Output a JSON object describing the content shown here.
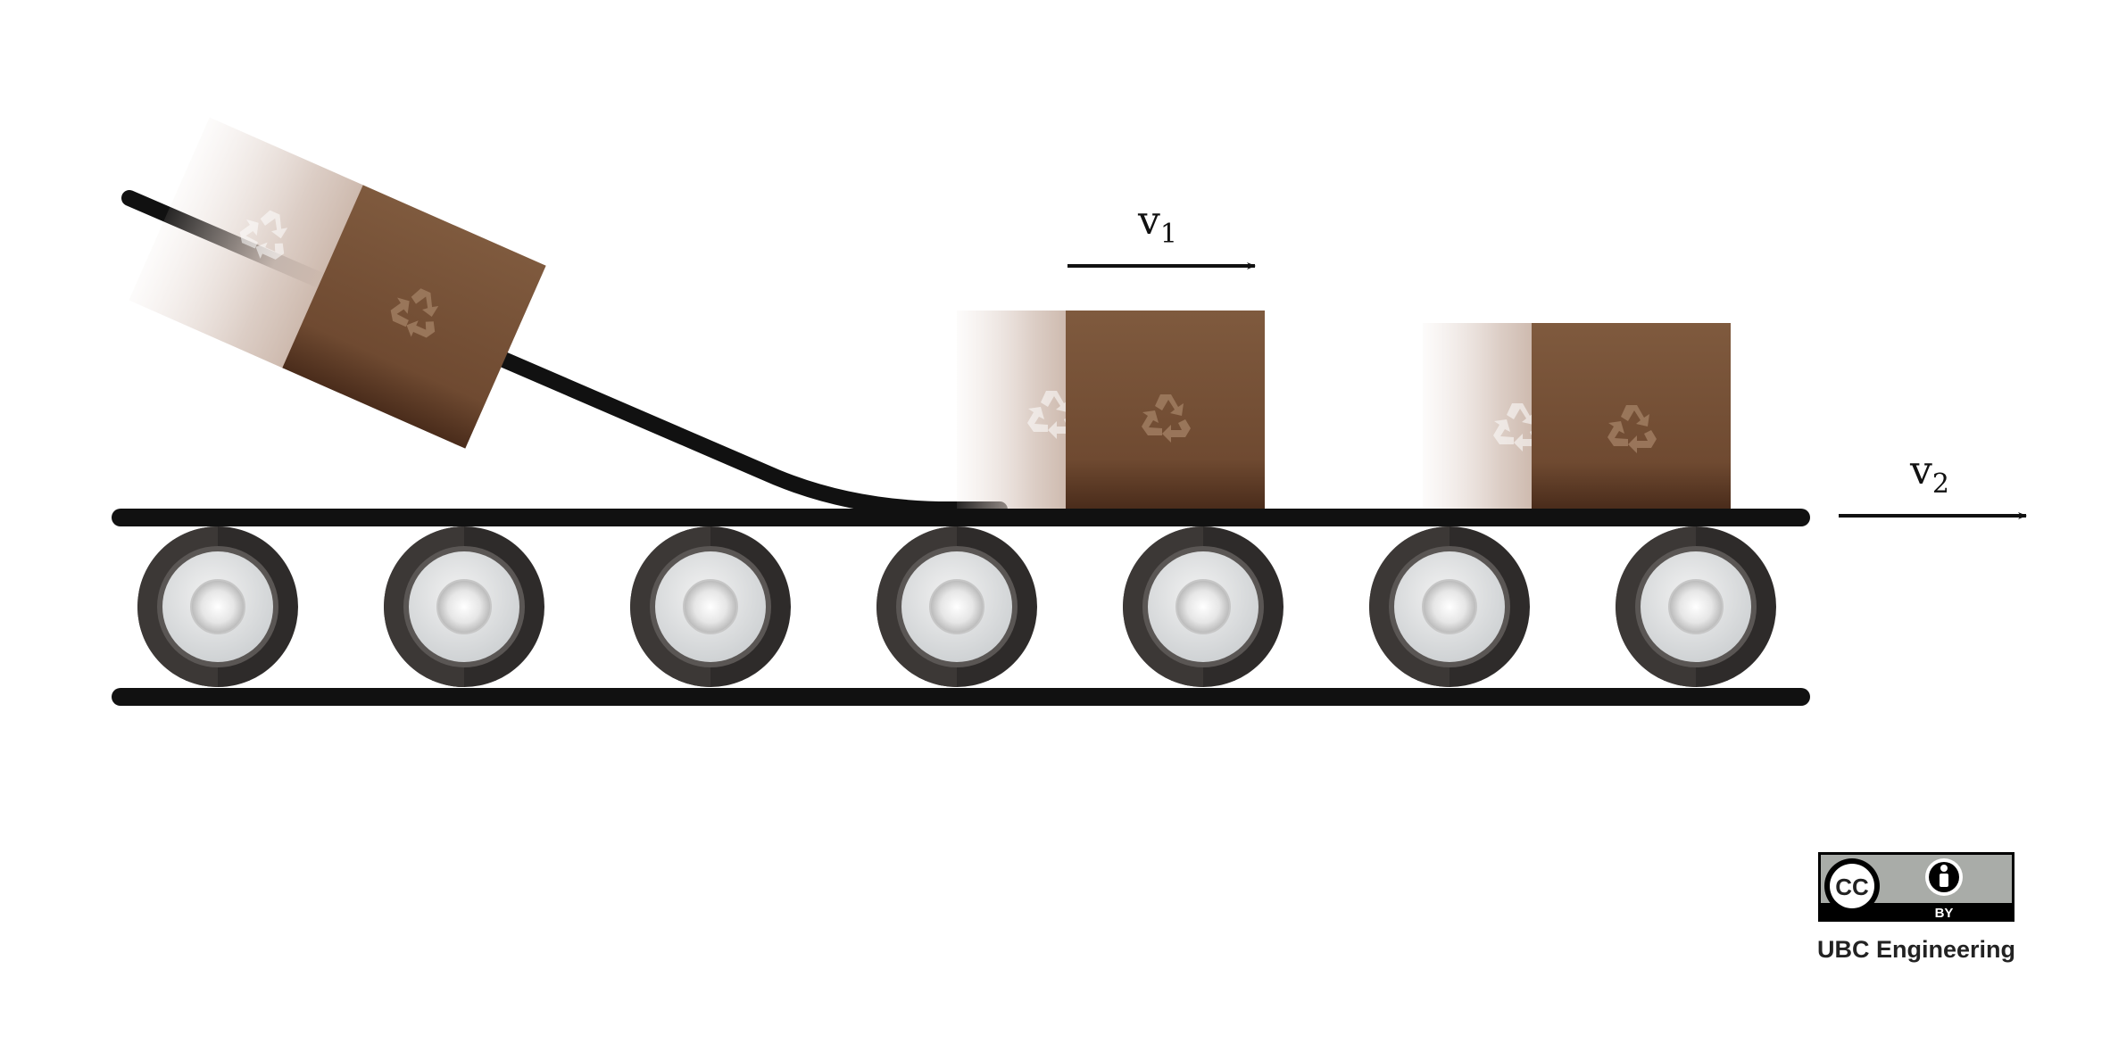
{
  "velocities": [
    {
      "symbol": "v",
      "subscript": "1"
    },
    {
      "symbol": "v",
      "subscript": "2"
    }
  ],
  "license": {
    "icon_cc": "CC",
    "icon_by": "BY",
    "credit": "UBC Engineering"
  },
  "colors": {
    "belt": "#111111",
    "box": "#7a5438",
    "roller_outer": "#333333",
    "roller_inner": "#dcdcdc",
    "badge_bg": "#a9aca8"
  },
  "icons": {
    "box_symbol": "recycle-icon"
  }
}
